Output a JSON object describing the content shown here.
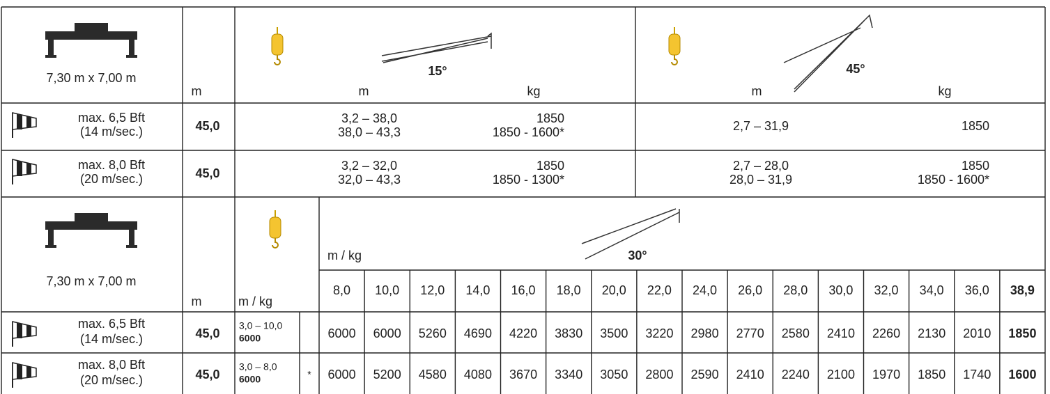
{
  "top": {
    "header": {
      "dimensions": "7,30 m x 7,00 m",
      "unit_length": "m",
      "boom_15": {
        "angle": "15°",
        "col_m": "m",
        "col_kg": "kg"
      },
      "boom_45": {
        "angle": "45°",
        "col_m": "m",
        "col_kg": "kg"
      }
    },
    "rows": [
      {
        "wind": "max. 6,5 Bft",
        "speed": "(14 m/sec.)",
        "length": "45,0",
        "boom_15": {
          "m": [
            "3,2 – 38,0",
            "38,0 – 43,3"
          ],
          "kg": [
            "1850",
            "1850 - 1600*"
          ]
        },
        "boom_45": {
          "m": [
            "2,7 – 31,9"
          ],
          "kg": [
            "1850"
          ]
        }
      },
      {
        "wind": "max. 8,0 Bft",
        "speed": "(20 m/sec.)",
        "length": "45,0",
        "boom_15": {
          "m": [
            "3,2 – 32,0",
            "32,0 – 43,3"
          ],
          "kg": [
            "1850",
            "1850 - 1300*"
          ]
        },
        "boom_45": {
          "m": [
            "2,7 – 28,0",
            "28,0 – 31,9"
          ],
          "kg": [
            "1850",
            "1850 - 1600*"
          ]
        }
      }
    ]
  },
  "bottom": {
    "header": {
      "dimensions": "7,30 m x 7,00 m",
      "unit_length": "m",
      "hook_unit": "m / kg",
      "boom_unit": "m / kg",
      "angle": "30°",
      "radii": [
        "8,0",
        "10,0",
        "12,0",
        "14,0",
        "16,0",
        "18,0",
        "20,0",
        "22,0",
        "24,0",
        "26,0",
        "28,0",
        "30,0",
        "32,0",
        "34,0",
        "36,0",
        "38,9"
      ]
    },
    "rows": [
      {
        "wind": "max. 6,5 Bft",
        "speed": "(14 m/sec.)",
        "length": "45,0",
        "range": "3,0 – 10,0",
        "range_load": "6000",
        "loads": [
          "6000",
          "6000",
          "5260",
          "4690",
          "4220",
          "3830",
          "3500",
          "3220",
          "2980",
          "2770",
          "2580",
          "2410",
          "2260",
          "2130",
          "2010",
          "1850"
        ]
      },
      {
        "wind": "max. 8,0 Bft",
        "speed": "(20 m/sec.)",
        "length": "45,0",
        "range": "3,0 –  8,0",
        "range_load": "6000",
        "note": "*",
        "loads": [
          "6000",
          "5200",
          "4580",
          "4080",
          "3670",
          "3340",
          "3050",
          "2800",
          "2590",
          "2410",
          "2240",
          "2100",
          "1970",
          "1850",
          "1740",
          "1600"
        ]
      }
    ]
  }
}
